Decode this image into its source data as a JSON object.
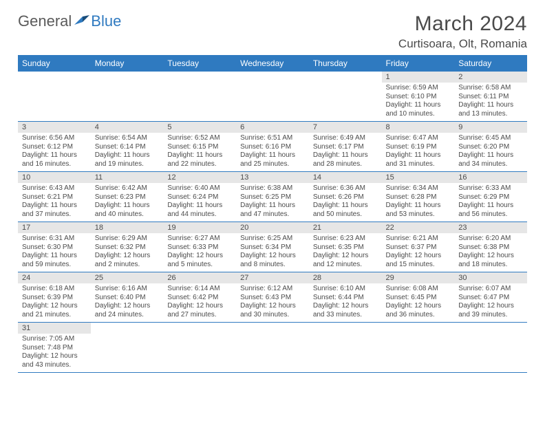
{
  "logo": {
    "general": "General",
    "blue": "Blue"
  },
  "title": "March 2024",
  "location": "Curtisoara, Olt, Romania",
  "daysOfWeek": [
    "Sunday",
    "Monday",
    "Tuesday",
    "Wednesday",
    "Thursday",
    "Friday",
    "Saturday"
  ],
  "colors": {
    "header_bg": "#2f7ac0",
    "header_text": "#ffffff",
    "daynum_bg": "#e6e6e6",
    "text": "#4a4a4a",
    "border": "#2f7ac0",
    "background": "#ffffff"
  },
  "grid": [
    [
      null,
      null,
      null,
      null,
      null,
      {
        "n": "1",
        "sr": "Sunrise: 6:59 AM",
        "ss": "Sunset: 6:10 PM",
        "dl": "Daylight: 11 hours and 10 minutes."
      },
      {
        "n": "2",
        "sr": "Sunrise: 6:58 AM",
        "ss": "Sunset: 6:11 PM",
        "dl": "Daylight: 11 hours and 13 minutes."
      }
    ],
    [
      {
        "n": "3",
        "sr": "Sunrise: 6:56 AM",
        "ss": "Sunset: 6:12 PM",
        "dl": "Daylight: 11 hours and 16 minutes."
      },
      {
        "n": "4",
        "sr": "Sunrise: 6:54 AM",
        "ss": "Sunset: 6:14 PM",
        "dl": "Daylight: 11 hours and 19 minutes."
      },
      {
        "n": "5",
        "sr": "Sunrise: 6:52 AM",
        "ss": "Sunset: 6:15 PM",
        "dl": "Daylight: 11 hours and 22 minutes."
      },
      {
        "n": "6",
        "sr": "Sunrise: 6:51 AM",
        "ss": "Sunset: 6:16 PM",
        "dl": "Daylight: 11 hours and 25 minutes."
      },
      {
        "n": "7",
        "sr": "Sunrise: 6:49 AM",
        "ss": "Sunset: 6:17 PM",
        "dl": "Daylight: 11 hours and 28 minutes."
      },
      {
        "n": "8",
        "sr": "Sunrise: 6:47 AM",
        "ss": "Sunset: 6:19 PM",
        "dl": "Daylight: 11 hours and 31 minutes."
      },
      {
        "n": "9",
        "sr": "Sunrise: 6:45 AM",
        "ss": "Sunset: 6:20 PM",
        "dl": "Daylight: 11 hours and 34 minutes."
      }
    ],
    [
      {
        "n": "10",
        "sr": "Sunrise: 6:43 AM",
        "ss": "Sunset: 6:21 PM",
        "dl": "Daylight: 11 hours and 37 minutes."
      },
      {
        "n": "11",
        "sr": "Sunrise: 6:42 AM",
        "ss": "Sunset: 6:23 PM",
        "dl": "Daylight: 11 hours and 40 minutes."
      },
      {
        "n": "12",
        "sr": "Sunrise: 6:40 AM",
        "ss": "Sunset: 6:24 PM",
        "dl": "Daylight: 11 hours and 44 minutes."
      },
      {
        "n": "13",
        "sr": "Sunrise: 6:38 AM",
        "ss": "Sunset: 6:25 PM",
        "dl": "Daylight: 11 hours and 47 minutes."
      },
      {
        "n": "14",
        "sr": "Sunrise: 6:36 AM",
        "ss": "Sunset: 6:26 PM",
        "dl": "Daylight: 11 hours and 50 minutes."
      },
      {
        "n": "15",
        "sr": "Sunrise: 6:34 AM",
        "ss": "Sunset: 6:28 PM",
        "dl": "Daylight: 11 hours and 53 minutes."
      },
      {
        "n": "16",
        "sr": "Sunrise: 6:33 AM",
        "ss": "Sunset: 6:29 PM",
        "dl": "Daylight: 11 hours and 56 minutes."
      }
    ],
    [
      {
        "n": "17",
        "sr": "Sunrise: 6:31 AM",
        "ss": "Sunset: 6:30 PM",
        "dl": "Daylight: 11 hours and 59 minutes."
      },
      {
        "n": "18",
        "sr": "Sunrise: 6:29 AM",
        "ss": "Sunset: 6:32 PM",
        "dl": "Daylight: 12 hours and 2 minutes."
      },
      {
        "n": "19",
        "sr": "Sunrise: 6:27 AM",
        "ss": "Sunset: 6:33 PM",
        "dl": "Daylight: 12 hours and 5 minutes."
      },
      {
        "n": "20",
        "sr": "Sunrise: 6:25 AM",
        "ss": "Sunset: 6:34 PM",
        "dl": "Daylight: 12 hours and 8 minutes."
      },
      {
        "n": "21",
        "sr": "Sunrise: 6:23 AM",
        "ss": "Sunset: 6:35 PM",
        "dl": "Daylight: 12 hours and 12 minutes."
      },
      {
        "n": "22",
        "sr": "Sunrise: 6:21 AM",
        "ss": "Sunset: 6:37 PM",
        "dl": "Daylight: 12 hours and 15 minutes."
      },
      {
        "n": "23",
        "sr": "Sunrise: 6:20 AM",
        "ss": "Sunset: 6:38 PM",
        "dl": "Daylight: 12 hours and 18 minutes."
      }
    ],
    [
      {
        "n": "24",
        "sr": "Sunrise: 6:18 AM",
        "ss": "Sunset: 6:39 PM",
        "dl": "Daylight: 12 hours and 21 minutes."
      },
      {
        "n": "25",
        "sr": "Sunrise: 6:16 AM",
        "ss": "Sunset: 6:40 PM",
        "dl": "Daylight: 12 hours and 24 minutes."
      },
      {
        "n": "26",
        "sr": "Sunrise: 6:14 AM",
        "ss": "Sunset: 6:42 PM",
        "dl": "Daylight: 12 hours and 27 minutes."
      },
      {
        "n": "27",
        "sr": "Sunrise: 6:12 AM",
        "ss": "Sunset: 6:43 PM",
        "dl": "Daylight: 12 hours and 30 minutes."
      },
      {
        "n": "28",
        "sr": "Sunrise: 6:10 AM",
        "ss": "Sunset: 6:44 PM",
        "dl": "Daylight: 12 hours and 33 minutes."
      },
      {
        "n": "29",
        "sr": "Sunrise: 6:08 AM",
        "ss": "Sunset: 6:45 PM",
        "dl": "Daylight: 12 hours and 36 minutes."
      },
      {
        "n": "30",
        "sr": "Sunrise: 6:07 AM",
        "ss": "Sunset: 6:47 PM",
        "dl": "Daylight: 12 hours and 39 minutes."
      }
    ],
    [
      {
        "n": "31",
        "sr": "Sunrise: 7:05 AM",
        "ss": "Sunset: 7:48 PM",
        "dl": "Daylight: 12 hours and 43 minutes."
      },
      null,
      null,
      null,
      null,
      null,
      null
    ]
  ]
}
